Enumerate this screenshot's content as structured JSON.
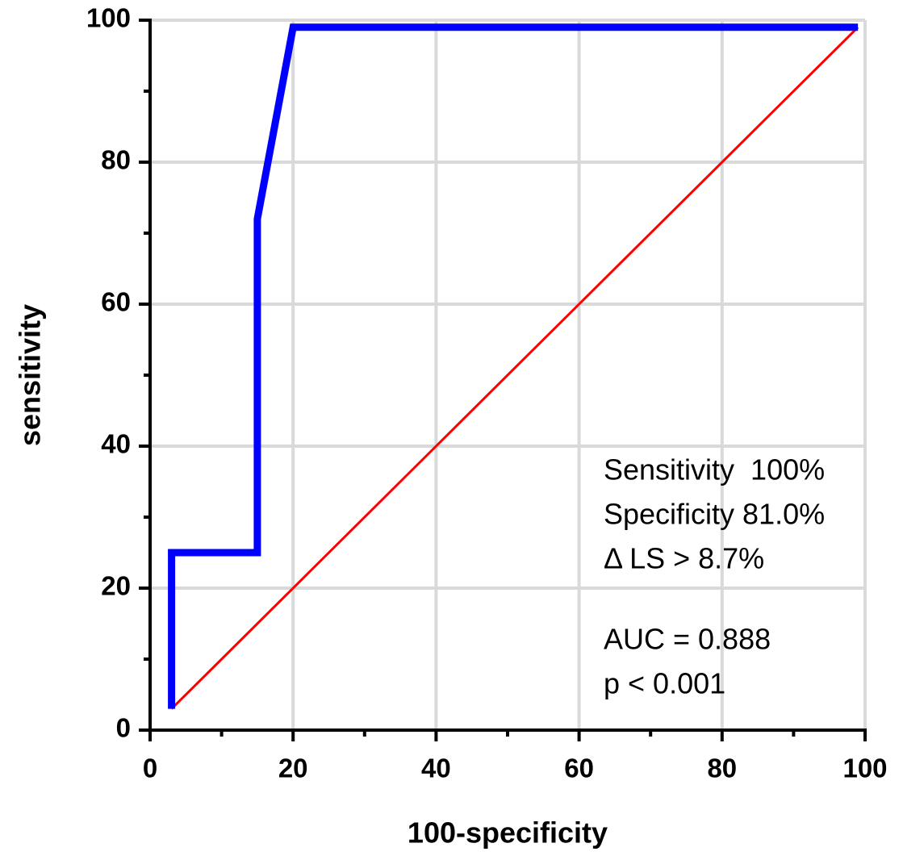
{
  "chart_data": {
    "type": "line",
    "xlabel": "100-specificity",
    "ylabel": "sensitivity",
    "xlim": [
      0,
      100
    ],
    "ylim": [
      0,
      100
    ],
    "xticks": [
      0,
      20,
      40,
      60,
      80,
      100
    ],
    "yticks": [
      0,
      20,
      40,
      60,
      80,
      100
    ],
    "xminorticks": [
      10,
      30,
      50,
      70,
      90
    ],
    "yminorticks": [
      10,
      30,
      50,
      70,
      90
    ],
    "grid": true,
    "series": [
      {
        "color": "#0000ff",
        "x": [
          3,
          3,
          15,
          15,
          20,
          99
        ],
        "values": [
          3,
          25,
          25,
          72,
          99,
          99
        ]
      },
      {
        "color": "#ff0000",
        "x": [
          3,
          99
        ],
        "values": [
          3,
          99
        ]
      }
    ],
    "annotations": [
      "Sensitivity  100%",
      "Specificity 81.0%",
      "Δ LS > 8.7%",
      "AUC = 0.888",
      "p < 0.001"
    ]
  }
}
